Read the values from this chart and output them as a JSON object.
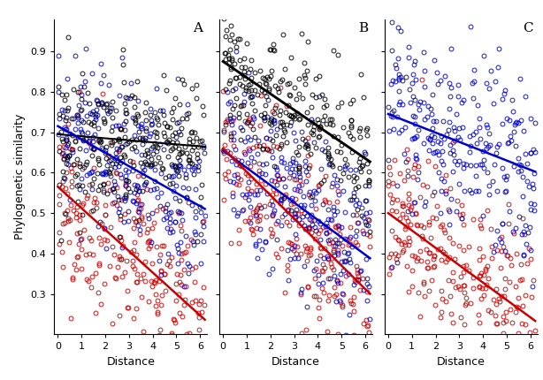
{
  "panels": [
    "A",
    "B",
    "C"
  ],
  "xlabel": "Distance",
  "ylabel": "Phylogenetic similarity",
  "xlim": [
    -0.15,
    6.3
  ],
  "ylim": [
    0.2,
    0.98
  ],
  "yticks": [
    0.3,
    0.4,
    0.5,
    0.6,
    0.7,
    0.8,
    0.9
  ],
  "xticks": [
    0,
    1,
    2,
    3,
    4,
    5,
    6
  ],
  "colors": {
    "black": "#000000",
    "blue": "#0000CC",
    "red": "#CC0000"
  },
  "panel_A": {
    "black_intercept": 0.695,
    "black_slope": -0.005,
    "blue_intercept": 0.715,
    "blue_slope": -0.033,
    "red_intercept": 0.565,
    "red_slope": -0.053
  },
  "panel_B": {
    "black_intercept": 0.875,
    "black_slope": -0.04,
    "blue_intercept": 0.655,
    "blue_slope": -0.043,
    "red_intercept": 0.66,
    "red_slope": -0.058
  },
  "panel_C": {
    "blue_intercept": 0.745,
    "blue_slope": -0.023,
    "red_intercept": 0.5,
    "red_slope": -0.043
  },
  "n_black": 280,
  "n_blue": 280,
  "n_red": 280,
  "seed": 7
}
